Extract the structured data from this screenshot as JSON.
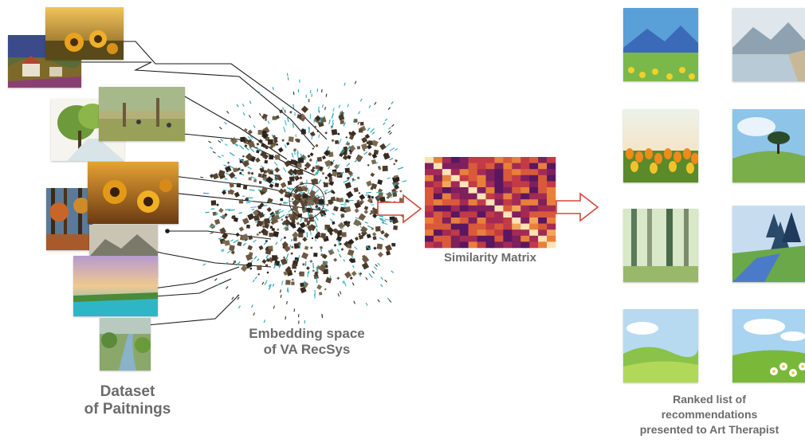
{
  "captions": {
    "dataset": "Dataset\nof Paitnings",
    "embedding": "Embedding space\nof VA RecSys",
    "similarity": "Similarity Matrix",
    "ranked": "Ranked list of\nrecommendations\npresented to Art Therapist"
  },
  "colors": {
    "caption_text": "#6b6b6b",
    "arrow": "#d0483a",
    "connector": "#1a1a1a",
    "cloud_dark": "#4a3a2a",
    "cloud_teal": "#2aa3b0",
    "matrix_low": "#3b0f4f",
    "matrix_mid": "#c0392b",
    "matrix_high": "#fbe3b5"
  },
  "dataset_paintings": [
    {
      "name": "painting-sunflower-field",
      "scene": "sunflowers"
    },
    {
      "name": "painting-village-hills",
      "scene": "village"
    },
    {
      "name": "painting-park-figures",
      "scene": "park"
    },
    {
      "name": "painting-tree-path",
      "scene": "treepath"
    },
    {
      "name": "painting-sunflowers-sunset",
      "scene": "sunflowers2"
    },
    {
      "name": "painting-autumn-forest",
      "scene": "autumn"
    },
    {
      "name": "painting-misty-mountains",
      "scene": "mountains"
    },
    {
      "name": "painting-lake-sunset",
      "scene": "lake"
    },
    {
      "name": "painting-stream-meadow",
      "scene": "stream"
    }
  ],
  "recommendations": [
    {
      "name": "rec-mountain-flower-field",
      "scene": "mountflowers"
    },
    {
      "name": "rec-mountain-lake",
      "scene": "mountlake"
    },
    {
      "name": "rec-tulip-field",
      "scene": "tulips"
    },
    {
      "name": "rec-lone-tree-hill",
      "scene": "tree"
    },
    {
      "name": "rec-birch-forest",
      "scene": "birch"
    },
    {
      "name": "rec-pine-river",
      "scene": "pines"
    },
    {
      "name": "rec-green-meadow",
      "scene": "meadow"
    },
    {
      "name": "rec-daisy-meadow",
      "scene": "daisies"
    }
  ]
}
